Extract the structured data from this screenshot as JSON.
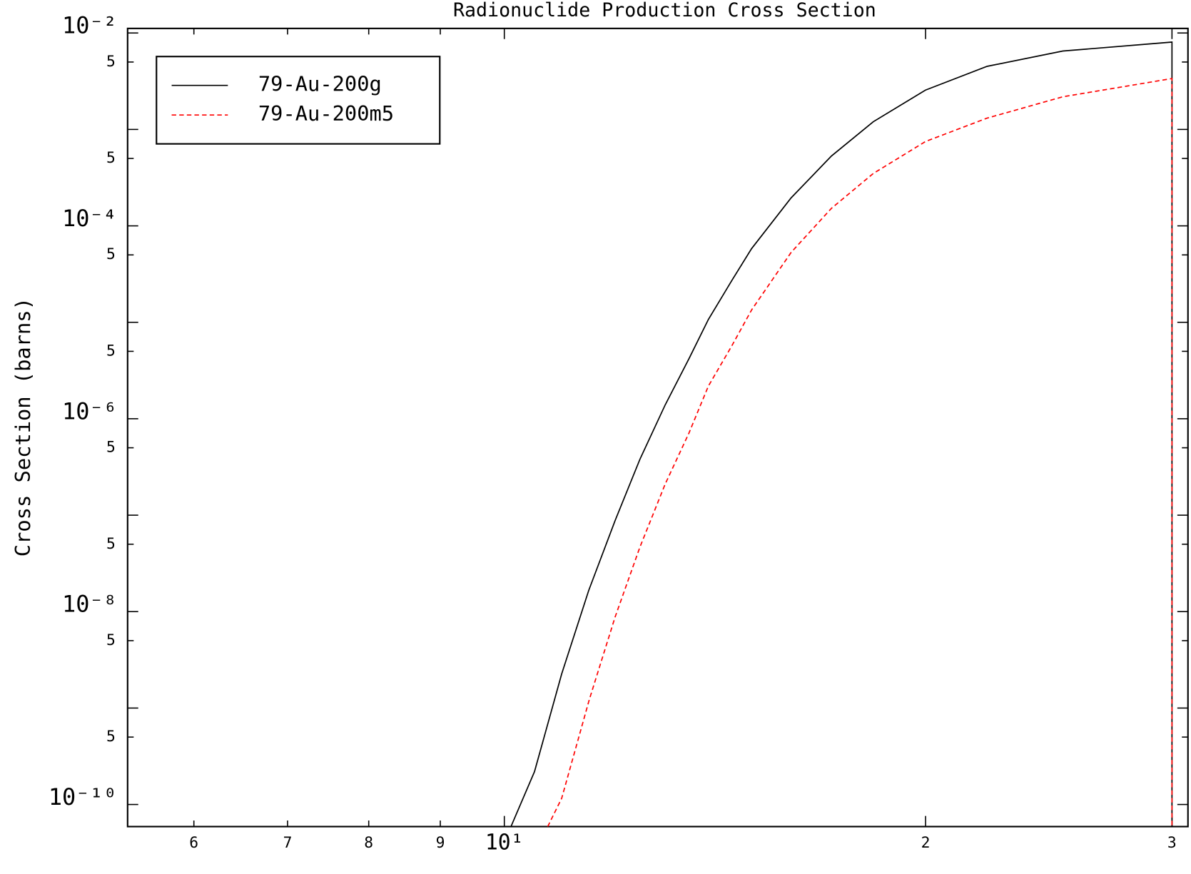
{
  "chart_data": {
    "type": "line",
    "title": "Radionuclide Production Cross Section",
    "ylabel": "Cross Section (barns)",
    "xscale": "log",
    "yscale": "log",
    "xlim": [
      5.38,
      30.8
    ],
    "ylim": [
      5.9e-11,
      0.01115
    ],
    "xticks": [
      6,
      7,
      8,
      9,
      {
        "value": 10,
        "label": "10¹"
      },
      {
        "value": 20,
        "label": "2"
      },
      {
        "value": 30,
        "label": "3"
      }
    ],
    "yticks": [
      {
        "value": 0.01,
        "label": "10⁻²"
      },
      {
        "value": 0.005,
        "label": "5"
      },
      {
        "value": 0.001,
        "label": null
      },
      {
        "value": 0.0005,
        "label": "5"
      },
      {
        "value": 0.0001,
        "label": "10⁻⁴"
      },
      {
        "value": 5e-05,
        "label": "5"
      },
      {
        "value": 1e-05,
        "label": null
      },
      {
        "value": 5e-06,
        "label": "5"
      },
      {
        "value": 1e-06,
        "label": "10⁻⁶"
      },
      {
        "value": 5e-07,
        "label": "5"
      },
      {
        "value": 1e-07,
        "label": null
      },
      {
        "value": 5e-08,
        "label": "5"
      },
      {
        "value": 1e-08,
        "label": "10⁻⁸"
      },
      {
        "value": 5e-09,
        "label": "5"
      },
      {
        "value": 1e-09,
        "label": null
      },
      {
        "value": 5e-10,
        "label": "5"
      },
      {
        "value": 1e-10,
        "label": "10⁻¹⁰"
      }
    ],
    "legend": "upper left",
    "series": [
      {
        "name": "79-Au-200g",
        "color": "#000000",
        "linestyle": "solid",
        "x": [
          10.11,
          10.51,
          10.99,
          11.49,
          12.0,
          12.5,
          13.03,
          13.55,
          13.99,
          14.54,
          15.02,
          16.03,
          17.13,
          18.35,
          20.0,
          22.13,
          25.07,
          30.0,
          30.0
        ],
        "values": [
          5.9e-11,
          2.2e-10,
          2.26e-09,
          1.66e-08,
          8.8e-08,
          3.8e-07,
          1.39e-06,
          4.19e-06,
          1.07e-05,
          2.71e-05,
          5.8e-05,
          0.000195,
          0.00053,
          0.0012,
          0.00256,
          0.00451,
          0.0065,
          0.00805,
          5.9e-11
        ]
      },
      {
        "name": "79-Au-200m5",
        "color": "#ff0000",
        "linestyle": "dashed",
        "x": [
          10.74,
          10.99,
          11.5,
          12.0,
          12.5,
          13.03,
          13.55,
          13.99,
          14.54,
          15.02,
          16.03,
          17.13,
          18.35,
          20.0,
          22.13,
          25.07,
          30.0,
          30.0
        ],
        "values": [
          5.9e-11,
          1.16e-10,
          1.22e-09,
          8.8e-09,
          4.67e-08,
          2.1e-07,
          7.1e-07,
          2.18e-06,
          5.7e-06,
          1.34e-05,
          5.3e-05,
          0.000152,
          0.000349,
          0.00075,
          0.00131,
          0.00218,
          0.00337,
          5.9e-11
        ]
      }
    ]
  }
}
